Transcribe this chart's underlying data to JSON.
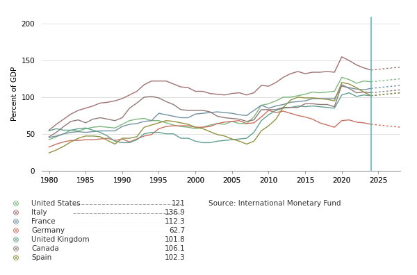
{
  "ylabel": "Percent of GDP",
  "xlim": [
    1979,
    2028
  ],
  "ylim": [
    0,
    210
  ],
  "yticks": [
    0,
    50,
    100,
    150,
    200
  ],
  "xticks": [
    1980,
    1985,
    1990,
    1995,
    2000,
    2005,
    2010,
    2015,
    2020,
    2025
  ],
  "vline_x": 2024,
  "source_text": "Source: International Monetary Fund",
  "bg_color": "#ffffff",
  "countries": [
    "United States",
    "Italy",
    "France",
    "Germany",
    "United Kingdom",
    "Canada",
    "Spain"
  ],
  "current_values": [
    "121",
    "136.9",
    "112.3",
    "62.7",
    "101.8",
    "106.1",
    "102.3"
  ],
  "colors": {
    "United States": "#7db87d",
    "Italy": "#a07070",
    "France": "#7090a0",
    "Germany": "#c87060",
    "United Kingdom": "#60a090",
    "Canada": "#907878",
    "Spain": "#909040"
  },
  "series": {
    "United States": {
      "years": [
        1980,
        1981,
        1982,
        1983,
        1984,
        1985,
        1986,
        1987,
        1988,
        1989,
        1990,
        1991,
        1992,
        1993,
        1994,
        1995,
        1996,
        1997,
        1998,
        1999,
        2000,
        2001,
        2002,
        2003,
        2004,
        2005,
        2006,
        2007,
        2008,
        2009,
        2010,
        2011,
        2012,
        2013,
        2014,
        2015,
        2016,
        2017,
        2018,
        2019,
        2020,
        2021,
        2022,
        2023,
        2024,
        2025,
        2026,
        2027,
        2028
      ],
      "values": [
        42,
        46,
        50,
        55,
        54,
        57,
        59,
        60,
        59,
        58,
        63,
        68,
        70,
        71,
        68,
        68,
        65,
        62,
        60,
        59,
        57,
        59,
        62,
        64,
        63,
        67,
        64,
        64,
        73,
        89,
        91,
        95,
        100,
        100,
        102,
        104,
        107,
        106,
        107,
        108,
        127,
        124,
        119,
        122,
        121,
        122,
        123,
        124,
        125
      ]
    },
    "Italy": {
      "years": [
        1980,
        1981,
        1982,
        1983,
        1984,
        1985,
        1986,
        1987,
        1988,
        1989,
        1990,
        1991,
        1992,
        1993,
        1994,
        1995,
        1996,
        1997,
        1998,
        1999,
        2000,
        2001,
        2002,
        2003,
        2004,
        2005,
        2006,
        2007,
        2008,
        2009,
        2010,
        2011,
        2012,
        2013,
        2014,
        2015,
        2016,
        2017,
        2018,
        2019,
        2020,
        2021,
        2022,
        2023,
        2024,
        2025,
        2026,
        2027,
        2028
      ],
      "values": [
        55,
        63,
        70,
        77,
        82,
        85,
        88,
        92,
        93,
        95,
        98,
        103,
        108,
        117,
        122,
        122,
        122,
        118,
        114,
        113,
        108,
        108,
        105,
        104,
        103,
        105,
        106,
        103,
        106,
        116,
        115,
        120,
        127,
        132,
        135,
        132,
        134,
        134,
        135,
        134,
        155,
        150,
        144,
        140,
        137,
        138,
        139,
        140,
        141
      ]
    },
    "France": {
      "years": [
        1980,
        1981,
        1982,
        1983,
        1984,
        1985,
        1986,
        1987,
        1988,
        1989,
        1990,
        1991,
        1992,
        1993,
        1994,
        1995,
        1996,
        1997,
        1998,
        1999,
        2000,
        2001,
        2002,
        2003,
        2004,
        2005,
        2006,
        2007,
        2008,
        2009,
        2010,
        2011,
        2012,
        2013,
        2014,
        2015,
        2016,
        2017,
        2018,
        2019,
        2020,
        2021,
        2022,
        2023,
        2024,
        2025,
        2026,
        2027,
        2028
      ],
      "values": [
        45,
        47,
        50,
        52,
        53,
        52,
        53,
        54,
        54,
        54,
        60,
        63,
        64,
        67,
        68,
        78,
        76,
        74,
        72,
        72,
        77,
        78,
        79,
        80,
        79,
        78,
        76,
        75,
        82,
        89,
        85,
        88,
        90,
        93,
        94,
        95,
        98,
        98,
        98,
        98,
        115,
        113,
        111,
        110,
        112,
        113,
        114,
        115,
        116
      ]
    },
    "Germany": {
      "years": [
        1980,
        1981,
        1982,
        1983,
        1984,
        1985,
        1986,
        1987,
        1988,
        1989,
        1990,
        1991,
        1992,
        1993,
        1994,
        1995,
        1996,
        1997,
        1998,
        1999,
        2000,
        2001,
        2002,
        2003,
        2004,
        2005,
        2006,
        2007,
        2008,
        2009,
        2010,
        2011,
        2012,
        2013,
        2014,
        2015,
        2016,
        2017,
        2018,
        2019,
        2020,
        2021,
        2022,
        2023,
        2024,
        2025,
        2026,
        2027,
        2028
      ],
      "values": [
        32,
        36,
        39,
        41,
        41,
        42,
        42,
        43,
        44,
        41,
        43,
        39,
        43,
        47,
        49,
        57,
        60,
        61,
        61,
        61,
        59,
        59,
        60,
        64,
        66,
        67,
        68,
        64,
        65,
        73,
        82,
        79,
        81,
        78,
        75,
        73,
        70,
        65,
        62,
        59,
        68,
        69,
        66,
        65,
        63,
        62,
        61,
        60,
        59
      ]
    },
    "United Kingdom": {
      "years": [
        1980,
        1981,
        1982,
        1983,
        1984,
        1985,
        1986,
        1987,
        1988,
        1989,
        1990,
        1991,
        1992,
        1993,
        1994,
        1995,
        1996,
        1997,
        1998,
        1999,
        2000,
        2001,
        2002,
        2003,
        2004,
        2005,
        2006,
        2007,
        2008,
        2009,
        2010,
        2011,
        2012,
        2013,
        2014,
        2015,
        2016,
        2017,
        2018,
        2019,
        2020,
        2021,
        2022,
        2023,
        2024,
        2025,
        2026,
        2027,
        2028
      ],
      "values": [
        54,
        57,
        55,
        55,
        57,
        58,
        55,
        52,
        47,
        40,
        38,
        38,
        42,
        50,
        52,
        52,
        50,
        50,
        44,
        44,
        40,
        38,
        38,
        40,
        41,
        42,
        43,
        44,
        52,
        68,
        76,
        82,
        85,
        86,
        88,
        87,
        88,
        87,
        86,
        85,
        103,
        106,
        101,
        103,
        102,
        103,
        104,
        105,
        106
      ]
    },
    "Canada": {
      "years": [
        1980,
        1981,
        1982,
        1983,
        1984,
        1985,
        1986,
        1987,
        1988,
        1989,
        1990,
        1991,
        1992,
        1993,
        1994,
        1995,
        1996,
        1997,
        1998,
        1999,
        2000,
        2001,
        2002,
        2003,
        2004,
        2005,
        2006,
        2007,
        2008,
        2009,
        2010,
        2011,
        2012,
        2013,
        2014,
        2015,
        2016,
        2017,
        2018,
        2019,
        2020,
        2021,
        2022,
        2023,
        2024,
        2025,
        2026,
        2027,
        2028
      ],
      "values": [
        46,
        52,
        60,
        67,
        69,
        65,
        70,
        72,
        70,
        68,
        72,
        85,
        92,
        100,
        101,
        99,
        94,
        90,
        83,
        82,
        82,
        82,
        80,
        74,
        72,
        71,
        70,
        67,
        69,
        83,
        83,
        83,
        86,
        86,
        86,
        91,
        91,
        90,
        90,
        87,
        117,
        112,
        106,
        107,
        106,
        107,
        108,
        109,
        110
      ]
    },
    "Spain": {
      "years": [
        1980,
        1981,
        1982,
        1983,
        1984,
        1985,
        1986,
        1987,
        1988,
        1989,
        1990,
        1991,
        1992,
        1993,
        1994,
        1995,
        1996,
        1997,
        1998,
        1999,
        2000,
        2001,
        2002,
        2003,
        2004,
        2005,
        2006,
        2007,
        2008,
        2009,
        2010,
        2011,
        2012,
        2013,
        2014,
        2015,
        2016,
        2017,
        2018,
        2019,
        2020,
        2021,
        2022,
        2023,
        2024,
        2025,
        2026,
        2027,
        2028
      ],
      "values": [
        24,
        28,
        33,
        39,
        44,
        47,
        47,
        46,
        41,
        36,
        44,
        44,
        46,
        59,
        62,
        65,
        68,
        67,
        65,
        63,
        59,
        57,
        53,
        49,
        47,
        43,
        40,
        36,
        40,
        54,
        61,
        70,
        86,
        96,
        100,
        99,
        99,
        98,
        97,
        95,
        120,
        118,
        113,
        107,
        102,
        103,
        104,
        105,
        106
      ]
    }
  }
}
